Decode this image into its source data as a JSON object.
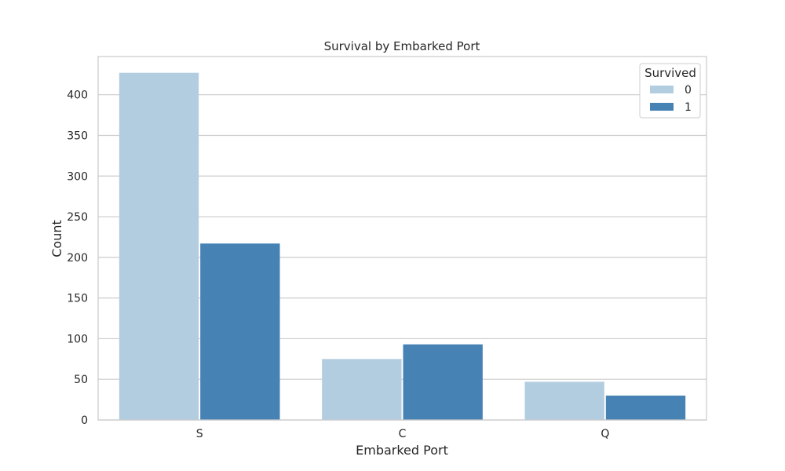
{
  "chart_data": {
    "type": "bar",
    "title": "Survival by Embarked Port",
    "xlabel": "Embarked Port",
    "ylabel": "Count",
    "categories": [
      "S",
      "C",
      "Q"
    ],
    "series": [
      {
        "name": "0",
        "values": [
          427,
          75,
          47
        ],
        "color": "#b3cde0"
      },
      {
        "name": "1",
        "values": [
          217,
          93,
          30
        ],
        "color": "#4682b4"
      }
    ],
    "ylim": [
      0,
      447
    ],
    "yticks": [
      0,
      50,
      100,
      150,
      200,
      250,
      300,
      350,
      400
    ],
    "grid": true,
    "legend": {
      "title": "Survived",
      "position": "top-right"
    }
  },
  "colors": {
    "grid": "#cccccc",
    "spine": "#cccccc",
    "text": "#262626",
    "legend_border": "#cccccc"
  }
}
